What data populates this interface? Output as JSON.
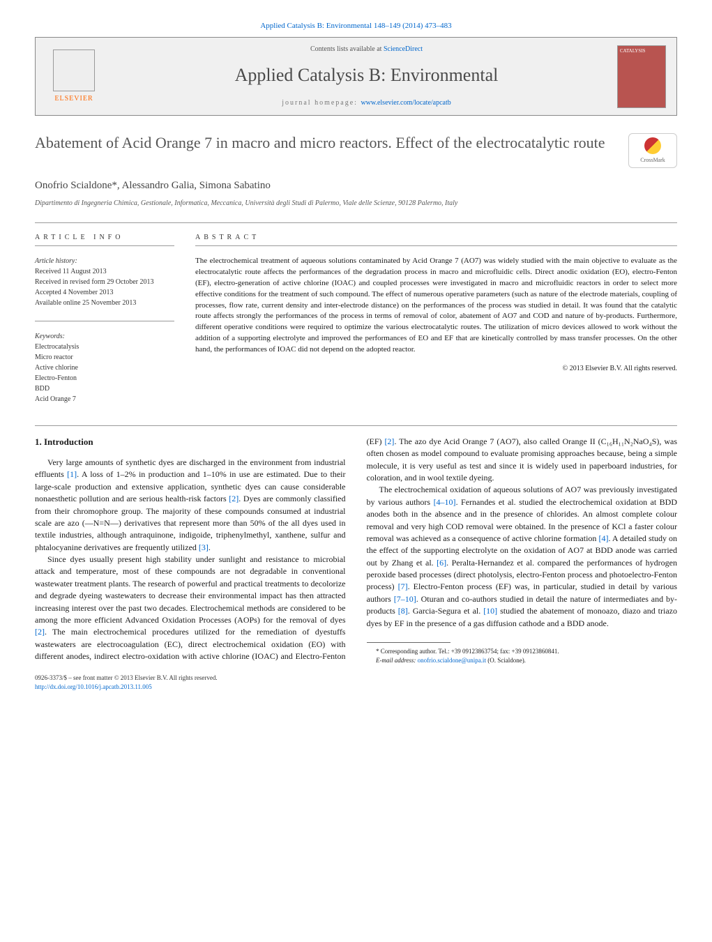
{
  "journal_ref": "Applied Catalysis B: Environmental 148–149 (2014) 473–483",
  "header": {
    "contents_prefix": "Contents lists available at ",
    "contents_link": "ScienceDirect",
    "journal_name": "Applied Catalysis B: Environmental",
    "homepage_prefix": "journal homepage: ",
    "homepage_link": "www.elsevier.com/locate/apcatb",
    "publisher": "ELSEVIER",
    "cover_label": "CATALYSIS"
  },
  "crossmark": "CrossMark",
  "title": "Abatement of Acid Orange 7 in macro and micro reactors. Effect of the electrocatalytic route",
  "authors": "Onofrio Scialdone*, Alessandro Galia, Simona Sabatino",
  "affiliation": "Dipartimento di Ingegneria Chimica, Gestionale, Informatica, Meccanica, Università degli Studi di Palermo, Viale delle Scienze, 90128 Palermo, Italy",
  "info_label": "article info",
  "abstract_label": "abstract",
  "history": {
    "label": "Article history:",
    "received": "Received 11 August 2013",
    "revised": "Received in revised form 29 October 2013",
    "accepted": "Accepted 4 November 2013",
    "online": "Available online 25 November 2013"
  },
  "keywords": {
    "label": "Keywords:",
    "items": [
      "Electrocatalysis",
      "Micro reactor",
      "Active chlorine",
      "Electro-Fenton",
      "BDD",
      "Acid Orange 7"
    ]
  },
  "abstract": "The electrochemical treatment of aqueous solutions contaminated by Acid Orange 7 (AO7) was widely studied with the main objective to evaluate as the electrocatalytic route affects the performances of the degradation process in macro and microfluidic cells. Direct anodic oxidation (EO), electro-Fenton (EF), electro-generation of active chlorine (IOAC) and coupled processes were investigated in macro and microfluidic reactors in order to select more effective conditions for the treatment of such compound. The effect of numerous operative parameters (such as nature of the electrode materials, coupling of processes, flow rate, current density and inter-electrode distance) on the performances of the process was studied in detail. It was found that the catalytic route affects strongly the performances of the process in terms of removal of color, abatement of AO7 and COD and nature of by-products. Furthermore, different operative conditions were required to optimize the various electrocatalytic routes. The utilization of micro devices allowed to work without the addition of a supporting electrolyte and improved the performances of EO and EF that are kinetically controlled by mass transfer processes. On the other hand, the performances of IOAC did not depend on the adopted reactor.",
  "copyright": "© 2013 Elsevier B.V. All rights reserved.",
  "intro_heading": "1. Introduction",
  "para1_a": "Very large amounts of synthetic dyes are discharged in the environment from industrial effluents ",
  "ref1": "[1]",
  "para1_b": ". A loss of 1–2% in production and 1–10% in use are estimated. Due to their large-scale production and extensive application, synthetic dyes can cause considerable nonaesthetic pollution and are serious health-risk factors ",
  "ref2a": "[2]",
  "para1_c": ". Dyes are commonly classified from their chromophore group. The majority of these compounds consumed at industrial scale are azo (—N=N—) derivatives that represent more than 50% of the all dyes used in textile industries, although antraquinone, indigoide, triphenylmethyl, xanthene, sulfur and phtalocyanine derivatives are frequently utilized ",
  "ref3": "[3]",
  "para2_a": "Since dyes usually present high stability under sunlight and resistance to microbial attack and temperature, most of these compounds are not degradable in conventional wastewater treatment plants. The research of powerful and practical treatments to decolorize and degrade dyeing wastewaters to decrease their environmental impact has then attracted increasing interest over the past two decades. Electrochemical methods are considered to be among the more efficient Advanced Oxidation Processes (AOPs) for the removal of dyes ",
  "ref2b": "[2]",
  "para2_b": ". The main electrochemical procedures ",
  "col2_a": "utilized for the remediation of dyestuffs wastewaters are electrocoagulation (EC), direct electrochemical oxidation (EO) with different anodes, indirect electro-oxidation with active chlorine (IOAC) and Electro-Fenton (EF) ",
  "ref2c": "[2]",
  "col2_b": ". The azo dye Acid Orange 7 (AO7), also called Orange II (C₁₆H₁₁N₂NaO₄S), was often chosen as model compound to evaluate promising approaches because, being a simple molecule, it is very useful as test and since it is widely used in paperboard industries, for coloration, and in wool textile dyeing.",
  "para3_a": "The electrochemical oxidation of aqueous solutions of AO7 was previously investigated by various authors ",
  "ref4_10a": "[4–10]",
  "para3_b": ". Fernandes et al. studied the electrochemical oxidation at BDD anodes both in the absence and in the presence of chlorides. An almost complete colour removal and very high COD removal were obtained. In the presence of KCl a faster colour removal was achieved as a consequence of active chlorine formation ",
  "ref4": "[4]",
  "para3_c": ". A detailed study on the effect of the supporting electrolyte on the oxidation of AO7 at BDD anode was carried out by Zhang et al. ",
  "ref6": "[6]",
  "para3_d": ". Peralta-Hernandez et al. compared the performances of hydrogen peroxide based processes (direct photolysis, electro-Fenton process and photoelectro-Fenton process) ",
  "ref7": "[7]",
  "para3_e": ". Electro-Fenton process (EF) was, in particular, studied in detail by various authors ",
  "ref7_10": "[7–10]",
  "para3_f": ". Oturan and co-authors studied in detail the nature of intermediates and by-products ",
  "ref8": "[8]",
  "para3_g": ". Garcia-Segura et al. ",
  "ref10": "[10]",
  "para3_h": " studied the abatement of monoazo, diazo and triazo dyes by EF in the presence of a gas diffusion cathode and a BDD anode.",
  "footnote": {
    "corr": "* Corresponding author. Tel.: +39 09123863754; fax: +39 09123860841.",
    "email_label": "E-mail address: ",
    "email": "onofrio.scialdone@unipa.it",
    "email_suffix": " (O. Scialdone)."
  },
  "footer": {
    "issn": "0926-3373/$ – see front matter © 2013 Elsevier B.V. All rights reserved.",
    "doi": "http://dx.doi.org/10.1016/j.apcatb.2013.11.005"
  },
  "colors": {
    "link": "#0066cc",
    "header_bg": "#f0f0f0",
    "cover": "#b85450",
    "publisher": "#ff6600"
  }
}
